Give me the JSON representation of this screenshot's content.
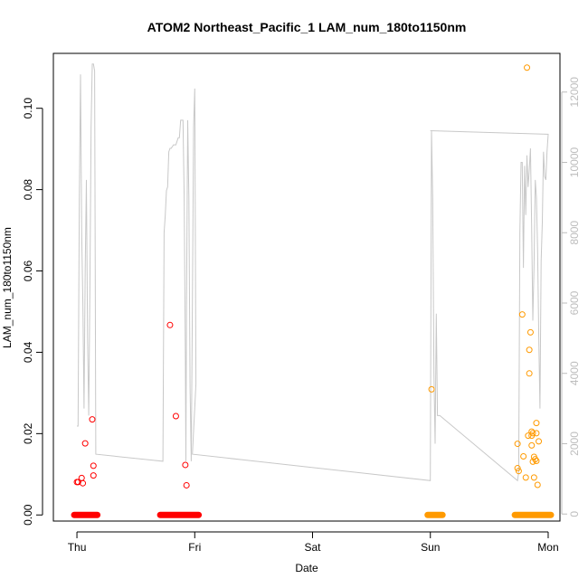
{
  "chart_data": {
    "type": "scatter",
    "title": "ATOM2 Northeast_Pacific_1 LAM_num_180to1150nm",
    "xlabel": "Date",
    "ylabel": "LAM_num_180to1150nm",
    "x_ticks": [
      "Thu",
      "Fri",
      "Sat",
      "Sun",
      "Mon"
    ],
    "x_tick_values": [
      0,
      1,
      2,
      3,
      4
    ],
    "xlim": [
      -0.2,
      4.1
    ],
    "ylim": [
      -0.0015,
      0.1135
    ],
    "y_ticks": [
      0.0,
      0.02,
      0.04,
      0.06,
      0.08,
      0.1
    ],
    "y_tick_labels": [
      "0.00",
      "0.02",
      "0.04",
      "0.06",
      "0.08",
      "0.10"
    ],
    "y2_ticks": [
      0,
      2000,
      4000,
      6000,
      8000,
      10000,
      12000
    ],
    "y2_tick_labels": [
      "0",
      "2000",
      "4000",
      "6000",
      "8000",
      "10000",
      "12000"
    ],
    "y2lim": [
      -200,
      13100
    ],
    "grid": false,
    "colors": {
      "red": "#ff0000",
      "orange": "#ff9a00",
      "line": "#c8c8c8"
    },
    "series": [
      {
        "color": "red",
        "points": [
          [
            0.0,
            0.0081
          ],
          [
            0.01,
            0.0081
          ],
          [
            0.04,
            0.0091
          ],
          [
            0.05,
            0.0078
          ],
          [
            0.07,
            0.0176
          ],
          [
            0.13,
            0.0235
          ],
          [
            0.14,
            0.0121
          ],
          [
            0.14,
            0.0097
          ],
          [
            0.79,
            0.0467
          ],
          [
            0.84,
            0.0243
          ],
          [
            0.92,
            0.0123
          ],
          [
            0.93,
            0.0073
          ]
        ],
        "zero_runs": [
          [
            0.0,
            0.15
          ],
          [
            0.73,
            1.01
          ]
        ]
      },
      {
        "color": "orange",
        "points": [
          [
            3.01,
            0.0309
          ],
          [
            3.74,
            0.0175
          ],
          [
            3.74,
            0.0115
          ],
          [
            3.75,
            0.0108
          ],
          [
            3.78,
            0.0493
          ],
          [
            3.79,
            0.0144
          ],
          [
            3.81,
            0.0092
          ],
          [
            3.82,
            0.11
          ],
          [
            3.83,
            0.0195
          ],
          [
            3.84,
            0.0348
          ],
          [
            3.84,
            0.0406
          ],
          [
            3.85,
            0.0449
          ],
          [
            3.86,
            0.0195
          ],
          [
            3.86,
            0.0205
          ],
          [
            3.86,
            0.0171
          ],
          [
            3.87,
            0.0201
          ],
          [
            3.87,
            0.0131
          ],
          [
            3.88,
            0.0092
          ],
          [
            3.88,
            0.0143
          ],
          [
            3.89,
            0.0137
          ],
          [
            3.9,
            0.0226
          ],
          [
            3.9,
            0.0201
          ],
          [
            3.9,
            0.0133
          ],
          [
            3.91,
            0.0074
          ],
          [
            3.92,
            0.0181
          ]
        ],
        "zero_runs": [
          [
            3.0,
            3.08
          ],
          [
            3.74,
            4.0
          ]
        ]
      },
      {
        "type": "line",
        "axis": "right",
        "color": "line",
        "points": [
          [
            0.0,
            2500
          ],
          [
            0.01,
            2500
          ],
          [
            0.02,
            9000
          ],
          [
            0.03,
            12500
          ],
          [
            0.04,
            8000
          ],
          [
            0.05,
            6000
          ],
          [
            0.06,
            3000
          ],
          [
            0.07,
            7000
          ],
          [
            0.08,
            9500
          ],
          [
            0.09,
            5000
          ],
          [
            0.1,
            2800
          ],
          [
            0.11,
            6500
          ],
          [
            0.12,
            11000
          ],
          [
            0.13,
            12800
          ],
          [
            0.14,
            12800
          ],
          [
            0.15,
            12600
          ],
          [
            0.16,
            1700
          ],
          [
            0.73,
            1500
          ],
          [
            0.74,
            8000
          ],
          [
            0.75,
            8500
          ],
          [
            0.76,
            9200
          ],
          [
            0.77,
            9300
          ],
          [
            0.78,
            10300
          ],
          [
            0.79,
            10400
          ],
          [
            0.8,
            10400
          ],
          [
            0.82,
            10500
          ],
          [
            0.84,
            10500
          ],
          [
            0.85,
            10600
          ],
          [
            0.86,
            10700
          ],
          [
            0.87,
            10700
          ],
          [
            0.88,
            11200
          ],
          [
            0.89,
            11200
          ],
          [
            0.9,
            11200
          ],
          [
            0.91,
            9000
          ],
          [
            0.92,
            4500
          ],
          [
            0.925,
            1500
          ],
          [
            0.93,
            6000
          ],
          [
            0.94,
            11200
          ],
          [
            0.95,
            9000
          ],
          [
            0.96,
            3600
          ],
          [
            0.97,
            1500
          ],
          [
            0.98,
            6000
          ],
          [
            0.99,
            11000
          ],
          [
            1.0,
            12100
          ],
          [
            1.01,
            3700
          ],
          [
            0.98,
            1700
          ],
          [
            3.0,
            950
          ],
          [
            3.01,
            10900
          ],
          [
            3.02,
            9000
          ],
          [
            3.03,
            4000
          ],
          [
            3.04,
            2000
          ],
          [
            3.05,
            5700
          ],
          [
            3.06,
            2800
          ],
          [
            3.08,
            2800
          ],
          [
            3.74,
            950
          ],
          [
            3.75,
            1200
          ],
          [
            3.76,
            8000
          ],
          [
            3.77,
            10000
          ],
          [
            3.78,
            10000
          ],
          [
            3.79,
            7000
          ],
          [
            3.8,
            9900
          ],
          [
            3.81,
            8500
          ],
          [
            3.82,
            10200
          ],
          [
            3.83,
            9300
          ],
          [
            3.84,
            9800
          ],
          [
            3.85,
            10400
          ],
          [
            3.86,
            8200
          ],
          [
            3.87,
            5500
          ],
          [
            3.88,
            7000
          ],
          [
            3.89,
            9500
          ],
          [
            3.9,
            9000
          ],
          [
            3.91,
            7500
          ],
          [
            3.92,
            5000
          ],
          [
            3.93,
            3000
          ],
          [
            3.94,
            7200
          ],
          [
            3.95,
            8300
          ],
          [
            3.96,
            10300
          ],
          [
            3.97,
            9600
          ],
          [
            3.98,
            9500
          ],
          [
            3.99,
            10300
          ],
          [
            4.0,
            10800
          ],
          [
            3.99,
            10800
          ],
          [
            3.0,
            10900
          ]
        ]
      }
    ]
  }
}
